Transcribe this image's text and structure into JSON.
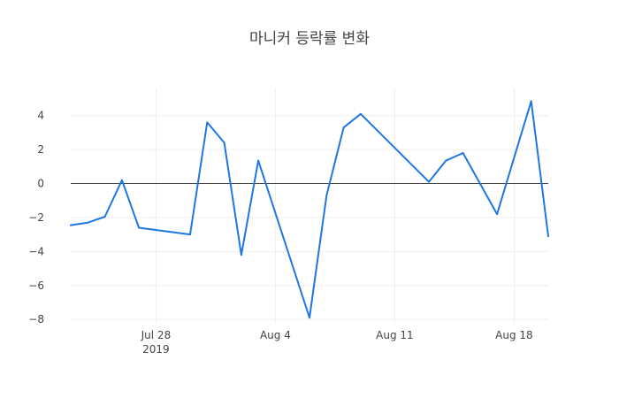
{
  "chart_data": {
    "type": "line",
    "title": "마니커 등락률 변화",
    "xlabel": "",
    "ylabel": "",
    "x_range": [
      "2019-07-23",
      "2019-08-20"
    ],
    "ylim": [
      -8.2,
      5.6
    ],
    "grid": true,
    "legend": "none",
    "x_ticks": [
      {
        "date": "2019-07-28",
        "label": "Jul 28",
        "sublabel": "2019"
      },
      {
        "date": "2019-08-04",
        "label": "Aug 4",
        "sublabel": ""
      },
      {
        "date": "2019-08-11",
        "label": "Aug 11",
        "sublabel": ""
      },
      {
        "date": "2019-08-18",
        "label": "Aug 18",
        "sublabel": ""
      }
    ],
    "y_ticks": [
      4,
      2,
      0,
      -2,
      -4,
      -6,
      -8
    ],
    "y_tick_labels": [
      "4",
      "2",
      "0",
      "−2",
      "−4",
      "−6",
      "−8"
    ],
    "series": [
      {
        "color": "#1f77e0",
        "x": [
          "2019-07-23",
          "2019-07-24",
          "2019-07-25",
          "2019-07-26",
          "2019-07-27",
          "2019-07-30",
          "2019-07-31",
          "2019-08-01",
          "2019-08-02",
          "2019-08-03",
          "2019-08-06",
          "2019-08-07",
          "2019-08-08",
          "2019-08-09",
          "2019-08-13",
          "2019-08-14",
          "2019-08-15",
          "2019-08-17",
          "2019-08-19",
          "2019-08-20"
        ],
        "y": [
          -2.45,
          -2.3,
          -1.95,
          0.2,
          -2.6,
          -3.0,
          3.6,
          2.4,
          -4.2,
          1.35,
          -7.9,
          -0.7,
          3.3,
          4.1,
          0.1,
          1.35,
          1.8,
          -1.8,
          4.85,
          -3.1
        ]
      }
    ]
  }
}
